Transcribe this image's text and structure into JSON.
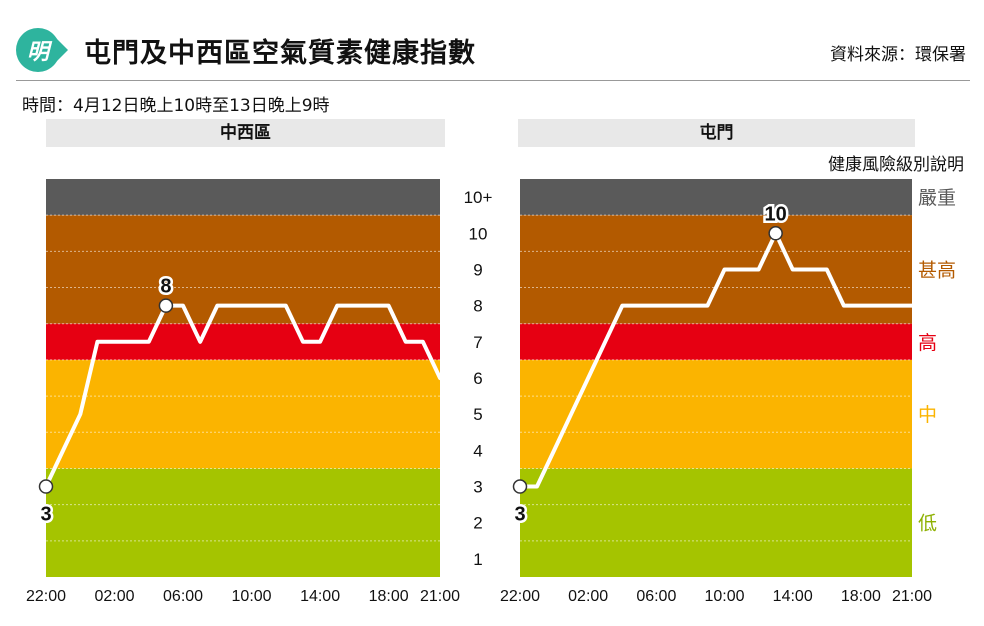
{
  "header": {
    "logo_text": "明",
    "title": "屯門及中西區空氣質素健康指數",
    "source": "資料來源：環保署",
    "time_range": "時間：4月12日晚上10時至13日晚上9時"
  },
  "legend": {
    "title": "健康風險級別說明",
    "bands": [
      {
        "name": "嚴重",
        "from": 10.5,
        "to": 11.5,
        "color": "#5a5a5a",
        "text_color": "#5a5a5a"
      },
      {
        "name": "甚高",
        "from": 7.5,
        "to": 10.5,
        "color": "#b35a00",
        "text_color": "#b35a00"
      },
      {
        "name": "高",
        "from": 6.5,
        "to": 7.5,
        "color": "#e60012",
        "text_color": "#e60012"
      },
      {
        "name": "中",
        "from": 3.5,
        "to": 6.5,
        "color": "#fbb400",
        "text_color": "#fbb400"
      },
      {
        "name": "低",
        "from": 0.5,
        "to": 3.5,
        "color": "#a5c400",
        "text_color": "#8db000"
      }
    ]
  },
  "chart_data": [
    {
      "type": "line",
      "title": "中西區",
      "x_ticks": [
        "22:00",
        "02:00",
        "06:00",
        "10:00",
        "14:00",
        "18:00",
        "21:00"
      ],
      "x_tick_hours": [
        0,
        4,
        8,
        12,
        16,
        20,
        23
      ],
      "y_ticks": [
        "1",
        "2",
        "3",
        "4",
        "5",
        "6",
        "7",
        "8",
        "9",
        "10",
        "10+"
      ],
      "ylim": [
        0.5,
        11.5
      ],
      "x": [
        0,
        1,
        2,
        3,
        4,
        5,
        6,
        7,
        8,
        9,
        10,
        11,
        12,
        13,
        14,
        15,
        16,
        17,
        18,
        19,
        20,
        21,
        22,
        23
      ],
      "values": [
        3,
        4,
        5,
        7,
        7,
        7,
        7,
        8,
        8,
        7,
        8,
        8,
        8,
        8,
        8,
        7,
        7,
        8,
        8,
        8,
        8,
        7,
        7,
        6
      ],
      "labels": [
        {
          "x": 0,
          "text": "3"
        },
        {
          "x": 7,
          "text": "8"
        }
      ]
    },
    {
      "type": "line",
      "title": "屯門",
      "x_ticks": [
        "22:00",
        "02:00",
        "06:00",
        "10:00",
        "14:00",
        "18:00",
        "21:00"
      ],
      "x_tick_hours": [
        0,
        4,
        8,
        12,
        16,
        20,
        23
      ],
      "ylim": [
        0.5,
        11.5
      ],
      "x": [
        0,
        1,
        2,
        3,
        4,
        5,
        6,
        7,
        8,
        9,
        10,
        11,
        12,
        13,
        14,
        15,
        16,
        17,
        18,
        19,
        20,
        21,
        22,
        23
      ],
      "values": [
        3,
        3,
        4,
        5,
        6,
        7,
        8,
        8,
        8,
        8,
        8,
        8,
        9,
        9,
        9,
        10,
        9,
        9,
        9,
        8,
        8,
        8,
        8,
        8
      ],
      "labels": [
        {
          "x": 0,
          "text": "3"
        },
        {
          "x": 15,
          "text": "10"
        }
      ]
    }
  ]
}
